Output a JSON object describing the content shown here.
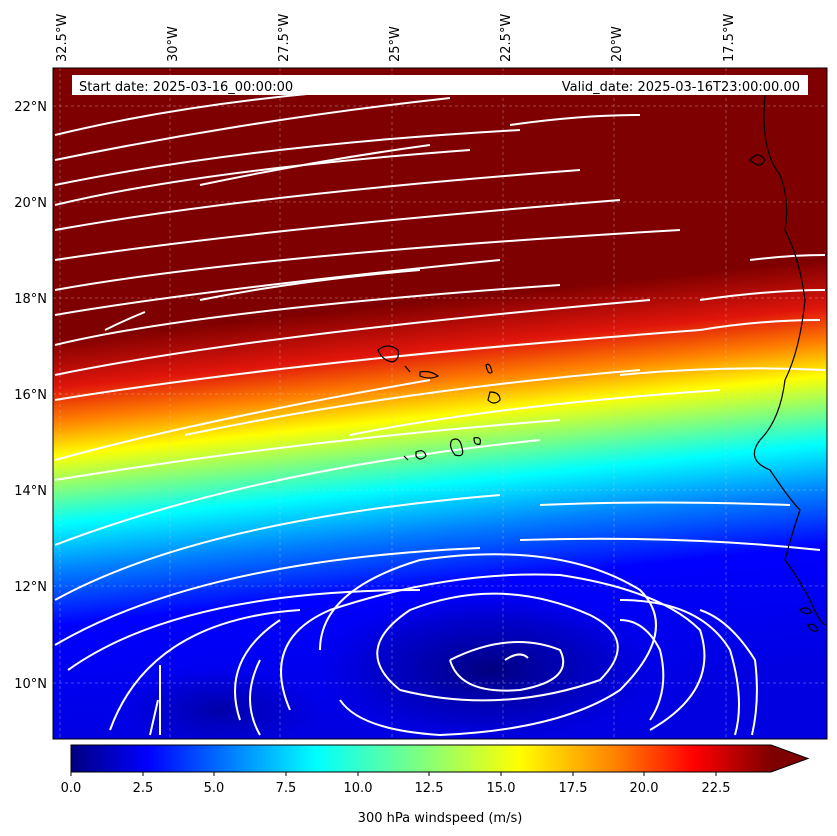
{
  "header": {
    "start_date": "Start date: 2025-03-16_00:00:00",
    "valid_date": "Valid_date: 2025-03-16T23:00:00.00"
  },
  "map": {
    "longitude_labels": [
      "32.5°W",
      "30°W",
      "27.5°W",
      "25°W",
      "22.5°W",
      "20°W",
      "17.5°W"
    ],
    "latitude_labels": [
      "22°N",
      "20°N",
      "18°N",
      "16°N",
      "14°N",
      "12°N",
      "10°N"
    ]
  },
  "colorbar": {
    "label": "300 hPa windspeed (m/s)",
    "ticks": [
      "0.0",
      "2.5",
      "5.0",
      "7.5",
      "10.0",
      "12.5",
      "15.0",
      "17.5",
      "20.0",
      "22.5"
    ],
    "colors": [
      "#00007f",
      "#0000ff",
      "#007fff",
      "#00ffff",
      "#7fff7f",
      "#ffff00",
      "#ff7f00",
      "#ff0000",
      "#7f0000"
    ]
  }
}
